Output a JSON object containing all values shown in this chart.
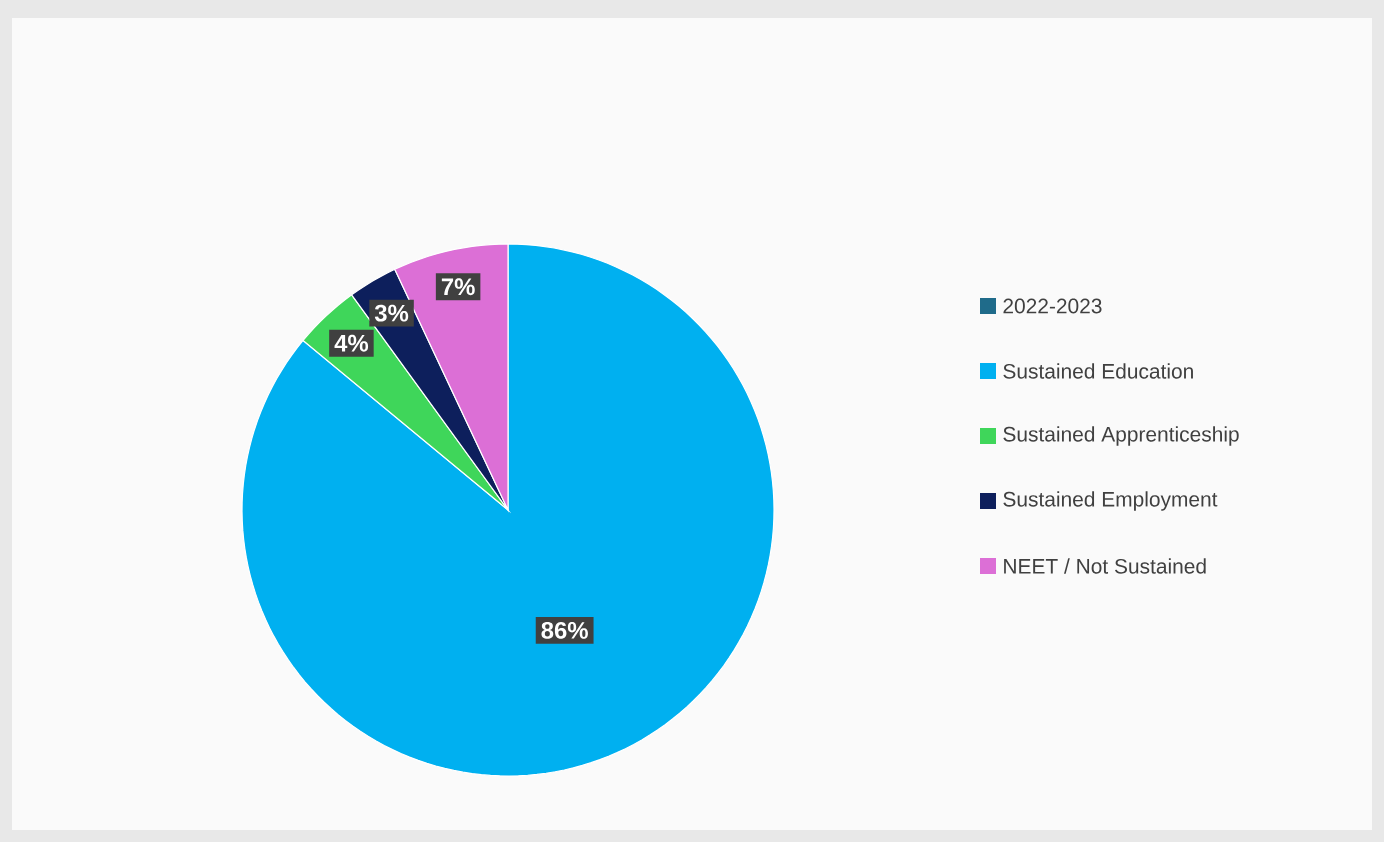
{
  "chart_data": {
    "type": "pie",
    "legend_title": "2022-2023",
    "categories": [
      "Sustained Education",
      "Sustained Apprenticeship",
      "Sustained Employment",
      "NEET / Not Sustained"
    ],
    "values": [
      86,
      4,
      3,
      7
    ],
    "colors": [
      "#00b0f0",
      "#3fd65a",
      "#0d1f5c",
      "#dc6fd6"
    ],
    "value_labels": [
      "86%",
      "4%",
      "3%",
      "7%"
    ],
    "legend": "right"
  }
}
